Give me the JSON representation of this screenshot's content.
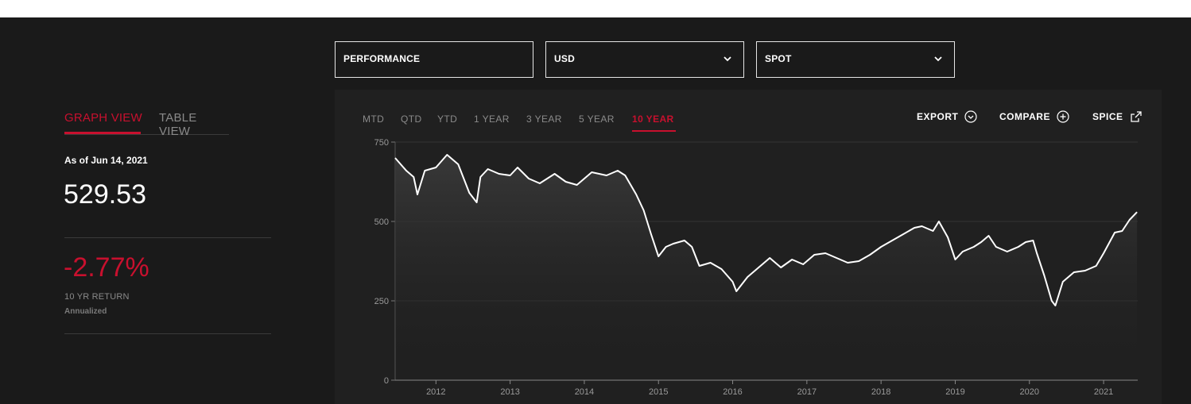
{
  "controls": {
    "performance": "PERFORMANCE",
    "currency": "USD",
    "price_type": "SPOT"
  },
  "view_tabs": {
    "graph": "GRAPH VIEW",
    "table": "TABLE VIEW"
  },
  "summary": {
    "as_of": "As of Jun 14, 2021",
    "value": "529.53",
    "return": "-2.77%",
    "return_label": "10 YR RETURN",
    "return_sub": "Annualized"
  },
  "periods": [
    "MTD",
    "QTD",
    "YTD",
    "1 YEAR",
    "3 YEAR",
    "5 YEAR",
    "10 YEAR"
  ],
  "active_period": "10 YEAR",
  "actions": {
    "export": "EXPORT",
    "compare": "COMPARE",
    "spice": "SPICE"
  },
  "colors": {
    "accent": "#c8102e",
    "background": "#1a1a1a",
    "panel": "#202020",
    "line": "#ffffff"
  },
  "icons": [
    "chevron-down-icon",
    "circle-chevron-down-icon",
    "circle-plus-icon",
    "external-link-icon"
  ],
  "chart_data": {
    "type": "line",
    "title": "",
    "xlabel": "",
    "ylabel": "",
    "ylim": [
      0,
      750
    ],
    "yticks": [
      0,
      250,
      500,
      750
    ],
    "xticks": [
      "2012",
      "2013",
      "2014",
      "2015",
      "2016",
      "2017",
      "2018",
      "2019",
      "2020",
      "2021"
    ],
    "grid": "horizontal",
    "series": [
      {
        "values": [
          [
            2011.45,
            700
          ],
          [
            2011.6,
            660
          ],
          [
            2011.7,
            640
          ],
          [
            2011.75,
            585
          ],
          [
            2011.85,
            660
          ],
          [
            2012.0,
            670
          ],
          [
            2012.15,
            710
          ],
          [
            2012.3,
            680
          ],
          [
            2012.45,
            590
          ],
          [
            2012.55,
            560
          ],
          [
            2012.6,
            640
          ],
          [
            2012.7,
            665
          ],
          [
            2012.85,
            650
          ],
          [
            2013.0,
            645
          ],
          [
            2013.1,
            670
          ],
          [
            2013.25,
            635
          ],
          [
            2013.4,
            620
          ],
          [
            2013.6,
            650
          ],
          [
            2013.75,
            625
          ],
          [
            2013.9,
            615
          ],
          [
            2014.1,
            655
          ],
          [
            2014.3,
            645
          ],
          [
            2014.45,
            660
          ],
          [
            2014.55,
            645
          ],
          [
            2014.7,
            585
          ],
          [
            2014.8,
            535
          ],
          [
            2014.9,
            460
          ],
          [
            2015.0,
            390
          ],
          [
            2015.1,
            420
          ],
          [
            2015.2,
            430
          ],
          [
            2015.35,
            440
          ],
          [
            2015.45,
            420
          ],
          [
            2015.55,
            360
          ],
          [
            2015.7,
            370
          ],
          [
            2015.85,
            350
          ],
          [
            2016.0,
            310
          ],
          [
            2016.05,
            280
          ],
          [
            2016.2,
            325
          ],
          [
            2016.35,
            355
          ],
          [
            2016.5,
            385
          ],
          [
            2016.65,
            355
          ],
          [
            2016.8,
            380
          ],
          [
            2016.95,
            365
          ],
          [
            2017.1,
            395
          ],
          [
            2017.25,
            400
          ],
          [
            2017.4,
            385
          ],
          [
            2017.55,
            370
          ],
          [
            2017.7,
            375
          ],
          [
            2017.85,
            395
          ],
          [
            2018.0,
            420
          ],
          [
            2018.15,
            440
          ],
          [
            2018.3,
            460
          ],
          [
            2018.45,
            480
          ],
          [
            2018.55,
            485
          ],
          [
            2018.7,
            470
          ],
          [
            2018.78,
            500
          ],
          [
            2018.9,
            450
          ],
          [
            2019.0,
            380
          ],
          [
            2019.1,
            405
          ],
          [
            2019.25,
            420
          ],
          [
            2019.35,
            435
          ],
          [
            2019.45,
            455
          ],
          [
            2019.55,
            420
          ],
          [
            2019.7,
            405
          ],
          [
            2019.85,
            420
          ],
          [
            2019.95,
            435
          ],
          [
            2020.05,
            440
          ],
          [
            2020.1,
            400
          ],
          [
            2020.2,
            330
          ],
          [
            2020.3,
            250
          ],
          [
            2020.35,
            235
          ],
          [
            2020.45,
            310
          ],
          [
            2020.6,
            340
          ],
          [
            2020.75,
            345
          ],
          [
            2020.9,
            360
          ],
          [
            2021.0,
            400
          ],
          [
            2021.15,
            465
          ],
          [
            2021.25,
            470
          ],
          [
            2021.35,
            505
          ],
          [
            2021.45,
            529.53
          ]
        ]
      }
    ]
  }
}
